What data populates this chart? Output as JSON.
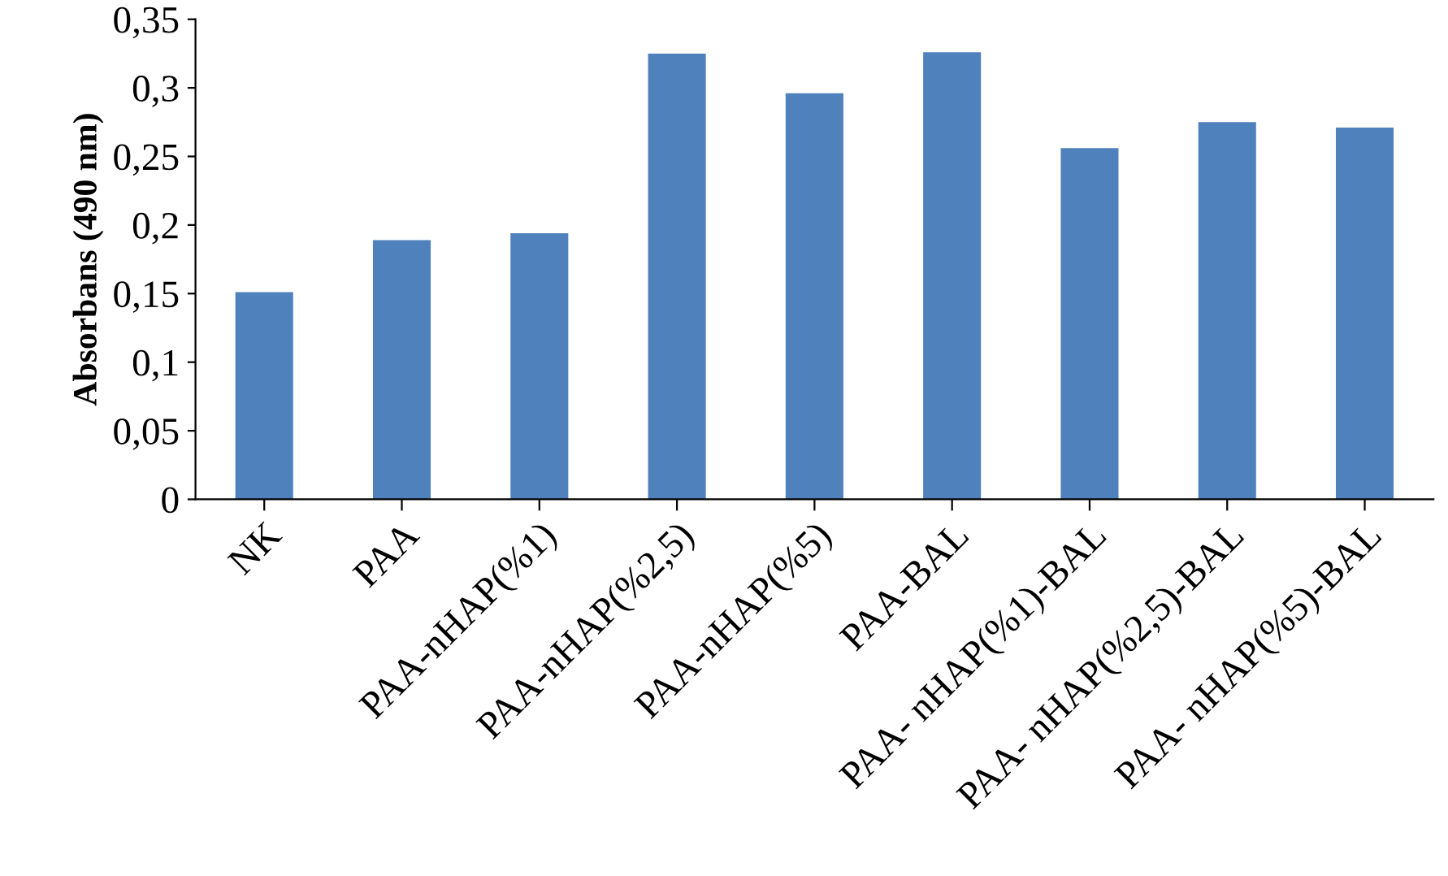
{
  "chart_data": {
    "type": "bar",
    "categories": [
      "NK",
      "PAA",
      "PAA-nHAP(%1)",
      "PAA-nHAP(%2,5)",
      "PAA-nHAP(%5)",
      "PAA-BAL",
      "PAA- nHAP(%1)-BAL",
      "PAA- nHAP(%2,5)-BAL",
      "PAA- nHAP(%5)-BAL"
    ],
    "values": [
      0.151,
      0.189,
      0.194,
      0.325,
      0.296,
      0.326,
      0.256,
      0.275,
      0.271
    ],
    "color": "#4f81bd",
    "ylabel": "Absorbans (490 nm)",
    "ylim": [
      0,
      0.35
    ],
    "yticks": [
      {
        "value": 0,
        "label": "0"
      },
      {
        "value": 0.05,
        "label": "0,05"
      },
      {
        "value": 0.1,
        "label": "0,1"
      },
      {
        "value": 0.15,
        "label": "0,15"
      },
      {
        "value": 0.2,
        "label": "0,2"
      },
      {
        "value": 0.25,
        "label": "0,25"
      },
      {
        "value": 0.3,
        "label": "0,3"
      },
      {
        "value": 0.35,
        "label": "0,35"
      }
    ],
    "grid": false,
    "legend": false
  }
}
